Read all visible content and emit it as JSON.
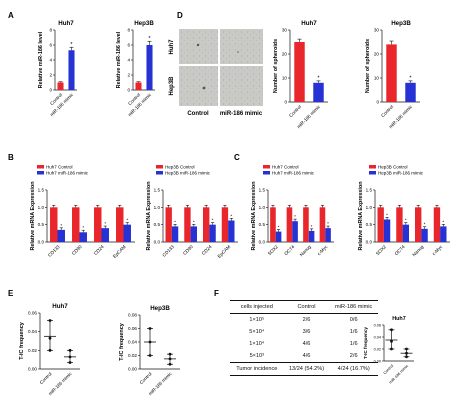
{
  "panel_labels": {
    "A": "A",
    "B": "B",
    "C": "C",
    "D": "D",
    "E": "E",
    "F": "F"
  },
  "colors": {
    "control": "#e8262b",
    "mimic": "#2632d4",
    "dot": "#111111"
  },
  "legend_labels": {
    "huh7_control": "Huh7 Control",
    "huh7_mimic": "Huh7 miR-186 mimic",
    "hep3b_control": "Hep3B Control",
    "hep3b_mimic": "Hep3B miR-186 mimic"
  },
  "microscopy": {
    "col_labels": [
      "Control",
      "miR-186 mimic"
    ],
    "row_labels": [
      "Huh7",
      "Hep3B"
    ]
  },
  "table_F": {
    "headers": [
      "cells injected",
      "Control",
      "miR-186 mimic"
    ],
    "rows": [
      [
        "1×10⁵",
        "2/6",
        "0/6"
      ],
      [
        "5×10⁴",
        "3/6",
        "1/6"
      ],
      [
        "1×10⁴",
        "4/6",
        "1/6"
      ],
      [
        "5×10³",
        "4/6",
        "2/6"
      ]
    ],
    "total": [
      "Tumor incidence",
      "13/24 (54.2%)",
      "4/24 (16.7%)"
    ]
  },
  "chart_data": [
    {
      "id": "A1",
      "type": "bar",
      "title": "Huh7",
      "ylabel": "Relative miR-186 level",
      "categories": [
        "Control",
        "miR-186 mimic"
      ],
      "values": [
        1.0,
        5.3
      ],
      "errors": [
        0.1,
        0.4
      ],
      "ylim": [
        0,
        8
      ],
      "yticks": [
        0,
        2,
        4,
        6,
        8
      ]
    },
    {
      "id": "A2",
      "type": "bar",
      "title": "Hep3B",
      "ylabel": "Relative miR-186 level",
      "categories": [
        "Control",
        "miR-186 mimic"
      ],
      "values": [
        1.0,
        6.0
      ],
      "errors": [
        0.1,
        0.5
      ],
      "ylim": [
        0,
        8
      ],
      "yticks": [
        0,
        2,
        4,
        6,
        8
      ]
    },
    {
      "id": "D1",
      "type": "bar",
      "title": "Huh7",
      "ylabel": "Number of spheroids",
      "categories": [
        "Control",
        "miR-186 mimic"
      ],
      "values": [
        25,
        8
      ],
      "errors": [
        1.2,
        0.8
      ],
      "ylim": [
        0,
        30
      ],
      "yticks": [
        0,
        10,
        20,
        30
      ]
    },
    {
      "id": "D2",
      "type": "bar",
      "title": "Hep3B",
      "ylabel": "Number of spheroids",
      "categories": [
        "Control",
        "miR-186 mimic"
      ],
      "values": [
        24,
        8
      ],
      "errors": [
        1.4,
        0.8
      ],
      "ylim": [
        0,
        30
      ],
      "yticks": [
        0,
        10,
        20,
        30
      ]
    },
    {
      "id": "B1",
      "type": "bar",
      "ylabel": "Relative mRNA Expression",
      "categories": [
        "CD133",
        "CD90",
        "CD24",
        "EpCAM"
      ],
      "series": [
        {
          "name": "Huh7 Control",
          "values": [
            1.0,
            1.0,
            1.0,
            1.0
          ]
        },
        {
          "name": "Huh7 miR-186 mimic",
          "values": [
            0.35,
            0.28,
            0.4,
            0.5
          ]
        }
      ],
      "ylim": [
        0,
        1.5
      ],
      "yticks": [
        0.0,
        0.5,
        1.0,
        1.5
      ]
    },
    {
      "id": "B2",
      "type": "bar",
      "ylabel": "Relative mRNA Expression",
      "categories": [
        "CD133",
        "CD90",
        "CD24",
        "EpCAM"
      ],
      "series": [
        {
          "name": "Hep3B Control",
          "values": [
            1.0,
            1.0,
            1.0,
            1.0
          ]
        },
        {
          "name": "Hep3B miR-186 mimic",
          "values": [
            0.45,
            0.45,
            0.5,
            0.62
          ]
        }
      ],
      "ylim": [
        0,
        1.5
      ],
      "yticks": [
        0.0,
        0.5,
        1.0,
        1.5
      ]
    },
    {
      "id": "C1",
      "type": "bar",
      "ylabel": "Relative mRNA Expression",
      "categories": [
        "SOX2",
        "OCT4",
        "Nanog",
        "c-Myc"
      ],
      "series": [
        {
          "name": "Huh7 Control",
          "values": [
            1.0,
            1.0,
            1.0,
            1.0
          ]
        },
        {
          "name": "Huh7 miR-186 mimic",
          "values": [
            0.3,
            0.6,
            0.32,
            0.4
          ]
        }
      ],
      "ylim": [
        0,
        1.5
      ],
      "yticks": [
        0.0,
        0.5,
        1.0,
        1.5
      ]
    },
    {
      "id": "C2",
      "type": "bar",
      "ylabel": "Relative mRNA Expression",
      "categories": [
        "SOX2",
        "OCT4",
        "Nanog",
        "c-Myc"
      ],
      "series": [
        {
          "name": "Hep3B Control",
          "values": [
            1.0,
            1.0,
            1.0,
            1.0
          ]
        },
        {
          "name": "Hep3B miR-186 mimic",
          "values": [
            0.65,
            0.5,
            0.38,
            0.45
          ]
        }
      ],
      "ylim": [
        0,
        1.5
      ],
      "yticks": [
        0.0,
        0.5,
        1.0,
        1.5
      ]
    },
    {
      "id": "E1",
      "type": "scatter",
      "title": "Huh7",
      "ylabel": "T-IC frequency",
      "categories": [
        "Control",
        "miR-186 mimic"
      ],
      "mean": [
        0.035,
        0.013
      ],
      "low": [
        0.02,
        0.007
      ],
      "high": [
        0.052,
        0.02
      ],
      "points": [
        [
          0.052,
          0.02,
          0.033
        ],
        [
          0.02,
          0.007,
          0.013
        ]
      ],
      "ylim": [
        0,
        0.06
      ],
      "yticks": [
        0.0,
        0.02,
        0.04,
        0.06
      ]
    },
    {
      "id": "E2",
      "type": "scatter",
      "title": "Hep3B",
      "ylabel": "T-IC frequency",
      "categories": [
        "Control",
        "miR-186 mimic"
      ],
      "mean": [
        0.04,
        0.015
      ],
      "low": [
        0.02,
        0.007
      ],
      "high": [
        0.06,
        0.022
      ],
      "points": [
        [
          0.06,
          0.02,
          0.04
        ],
        [
          0.022,
          0.007,
          0.015
        ]
      ],
      "ylim": [
        0,
        0.08
      ],
      "yticks": [
        0.0,
        0.02,
        0.04,
        0.06,
        0.08
      ]
    },
    {
      "id": "F1",
      "type": "scatter",
      "title": "Huh7",
      "ylabel": "T-IC frequency",
      "categories": [
        "Control",
        "miR-186 mimic"
      ],
      "mean": [
        0.035,
        0.013
      ],
      "low": [
        0.02,
        0.007
      ],
      "high": [
        0.052,
        0.02
      ],
      "points": [
        [
          0.052,
          0.02,
          0.033
        ],
        [
          0.02,
          0.007,
          0.013
        ]
      ],
      "ylim": [
        0,
        0.06
      ],
      "yticks": [
        0.0,
        0.02,
        0.04,
        0.06
      ]
    }
  ]
}
